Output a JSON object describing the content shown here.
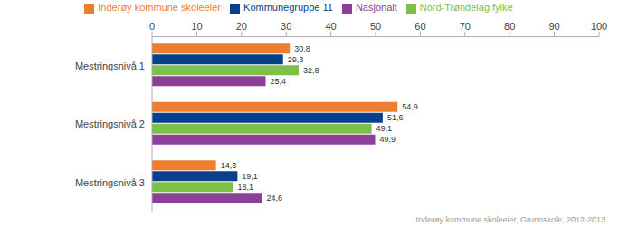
{
  "chart_data": {
    "type": "bar",
    "orientation": "horizontal",
    "categories": [
      "Mestringsnivå 1",
      "Mestringsnivå 2",
      "Mestringsnivå 3"
    ],
    "series": [
      {
        "name": "Inderøy kommune skoleeier",
        "color": "#f07d2e",
        "values": [
          30.8,
          54.9,
          14.3
        ],
        "value_labels": [
          "30,8",
          "54,9",
          "14,3"
        ]
      },
      {
        "name": "Kommunegruppe 11",
        "color": "#0a3f8c",
        "values": [
          29.3,
          51.6,
          19.1
        ],
        "value_labels": [
          "29,3",
          "51,6",
          "19,1"
        ]
      },
      {
        "name": "Nord-Trøndelag fylke",
        "color": "#7cc04a",
        "values": [
          32.8,
          49.1,
          18.1
        ],
        "value_labels": [
          "32,8",
          "49,1",
          "18,1"
        ]
      },
      {
        "name": "Nasjonalt",
        "color": "#8b3f98",
        "values": [
          25.4,
          49.9,
          24.6
        ],
        "value_labels": [
          "25,4",
          "49,9",
          "24,6"
        ]
      }
    ],
    "xlim": [
      0,
      100
    ],
    "xticks": [
      0,
      10,
      20,
      30,
      40,
      50,
      60,
      70,
      80,
      90,
      100
    ],
    "grid": false,
    "data_labels": true,
    "legend": "top",
    "annotations": [
      "Inderøy kommune skoleeier, Grunnskole, 2012-2013"
    ]
  }
}
